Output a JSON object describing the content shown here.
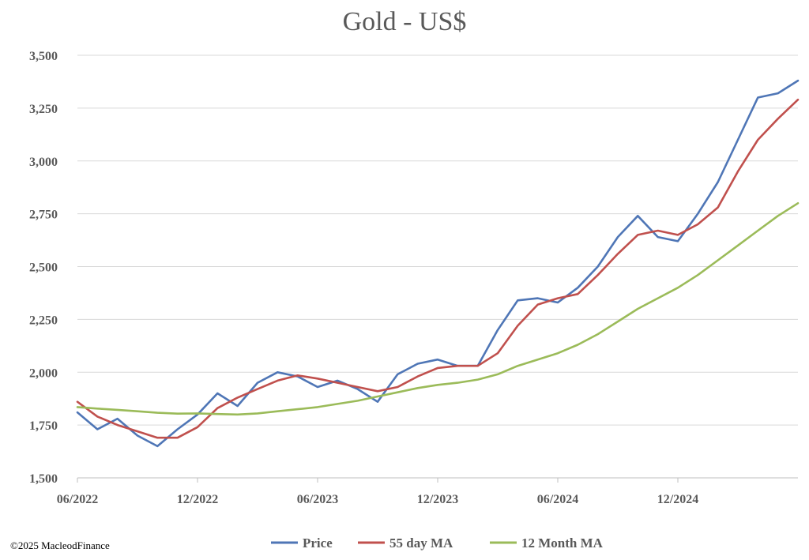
{
  "chart_data": {
    "type": "line",
    "title": "Gold - US$",
    "xlabel": "",
    "ylabel": "",
    "ylim": [
      1500,
      3500
    ],
    "yticks": [
      "1,500",
      "1,750",
      "2,000",
      "2,250",
      "2,500",
      "2,750",
      "3,000",
      "3,250",
      "3,500"
    ],
    "ytick_values": [
      1500,
      1750,
      2000,
      2250,
      2500,
      2750,
      3000,
      3250,
      3500
    ],
    "xticks": [
      "06/2022",
      "12/2022",
      "06/2023",
      "12/2023",
      "06/2024",
      "12/2024"
    ],
    "x_start": "2022-06",
    "x_end": "2025-06",
    "grid": "horizontal",
    "legend_position": "bottom",
    "x": [
      "2022-06",
      "2022-07",
      "2022-08",
      "2022-09",
      "2022-10",
      "2022-11",
      "2022-12",
      "2023-01",
      "2023-02",
      "2023-03",
      "2023-04",
      "2023-05",
      "2023-06",
      "2023-07",
      "2023-08",
      "2023-09",
      "2023-10",
      "2023-11",
      "2023-12",
      "2024-01",
      "2024-02",
      "2024-03",
      "2024-04",
      "2024-05",
      "2024-06",
      "2024-07",
      "2024-08",
      "2024-09",
      "2024-10",
      "2024-11",
      "2024-12",
      "2025-01",
      "2025-02",
      "2025-03",
      "2025-04",
      "2025-05",
      "2025-06"
    ],
    "series": [
      {
        "name": "Price",
        "color": "#4f76b6",
        "values": [
          1810,
          1730,
          1780,
          1700,
          1650,
          1730,
          1800,
          1900,
          1840,
          1950,
          2000,
          1980,
          1930,
          1960,
          1920,
          1860,
          1990,
          2040,
          2060,
          2030,
          2030,
          2200,
          2340,
          2350,
          2330,
          2400,
          2500,
          2640,
          2740,
          2640,
          2620,
          2750,
          2900,
          3100,
          3300,
          3320,
          3380
        ]
      },
      {
        "name": "55 day MA",
        "color": "#c0504d",
        "values": [
          1860,
          1790,
          1750,
          1720,
          1690,
          1690,
          1740,
          1830,
          1880,
          1920,
          1960,
          1985,
          1970,
          1950,
          1930,
          1910,
          1930,
          1980,
          2020,
          2030,
          2030,
          2090,
          2220,
          2320,
          2350,
          2370,
          2460,
          2560,
          2650,
          2670,
          2650,
          2700,
          2780,
          2950,
          3100,
          3200,
          3290
        ]
      },
      {
        "name": "12 Month MA",
        "color": "#9bbb59",
        "values": [
          1835,
          1828,
          1822,
          1815,
          1808,
          1804,
          1805,
          1802,
          1800,
          1805,
          1815,
          1825,
          1835,
          1850,
          1865,
          1885,
          1905,
          1925,
          1940,
          1950,
          1965,
          1990,
          2030,
          2060,
          2090,
          2130,
          2180,
          2240,
          2300,
          2350,
          2400,
          2460,
          2530,
          2600,
          2670,
          2740,
          2800
        ]
      }
    ]
  },
  "footer": {
    "copyright": "©2025 MacleodFinance"
  }
}
